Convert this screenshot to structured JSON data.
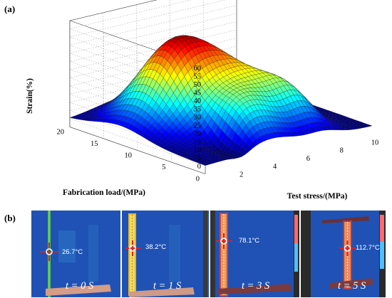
{
  "panels": {
    "a": "(a)",
    "b": "(b)"
  },
  "chart_data": {
    "type": "surface",
    "zlabel": "Strain(%)",
    "xlabel": "Test stress/(MPa)",
    "ylabel": "Fabrication load/(MPa)",
    "z_ticks": [
      0,
      5,
      10,
      15,
      20,
      25,
      30,
      35,
      40,
      45,
      50,
      55,
      60
    ],
    "x_ticks": [
      2,
      4,
      6,
      8,
      10
    ],
    "y_ticks": [
      20,
      15,
      10,
      5,
      0
    ],
    "xlim": [
      0,
      10
    ],
    "ylim": [
      0,
      20
    ],
    "zlim": [
      0,
      60
    ],
    "colormap": "jet",
    "grid": true,
    "peak_strain_approx": 55
  },
  "thermal": [
    {
      "temp": "26.7°C",
      "time_html": "t = 0 S"
    },
    {
      "temp": "38.2°C",
      "time_html": "t = 1 S"
    },
    {
      "temp": "78.1°C",
      "time_html": "t = 3 S"
    },
    {
      "temp": "112.7°C",
      "time_html": "t = 5 S"
    }
  ]
}
